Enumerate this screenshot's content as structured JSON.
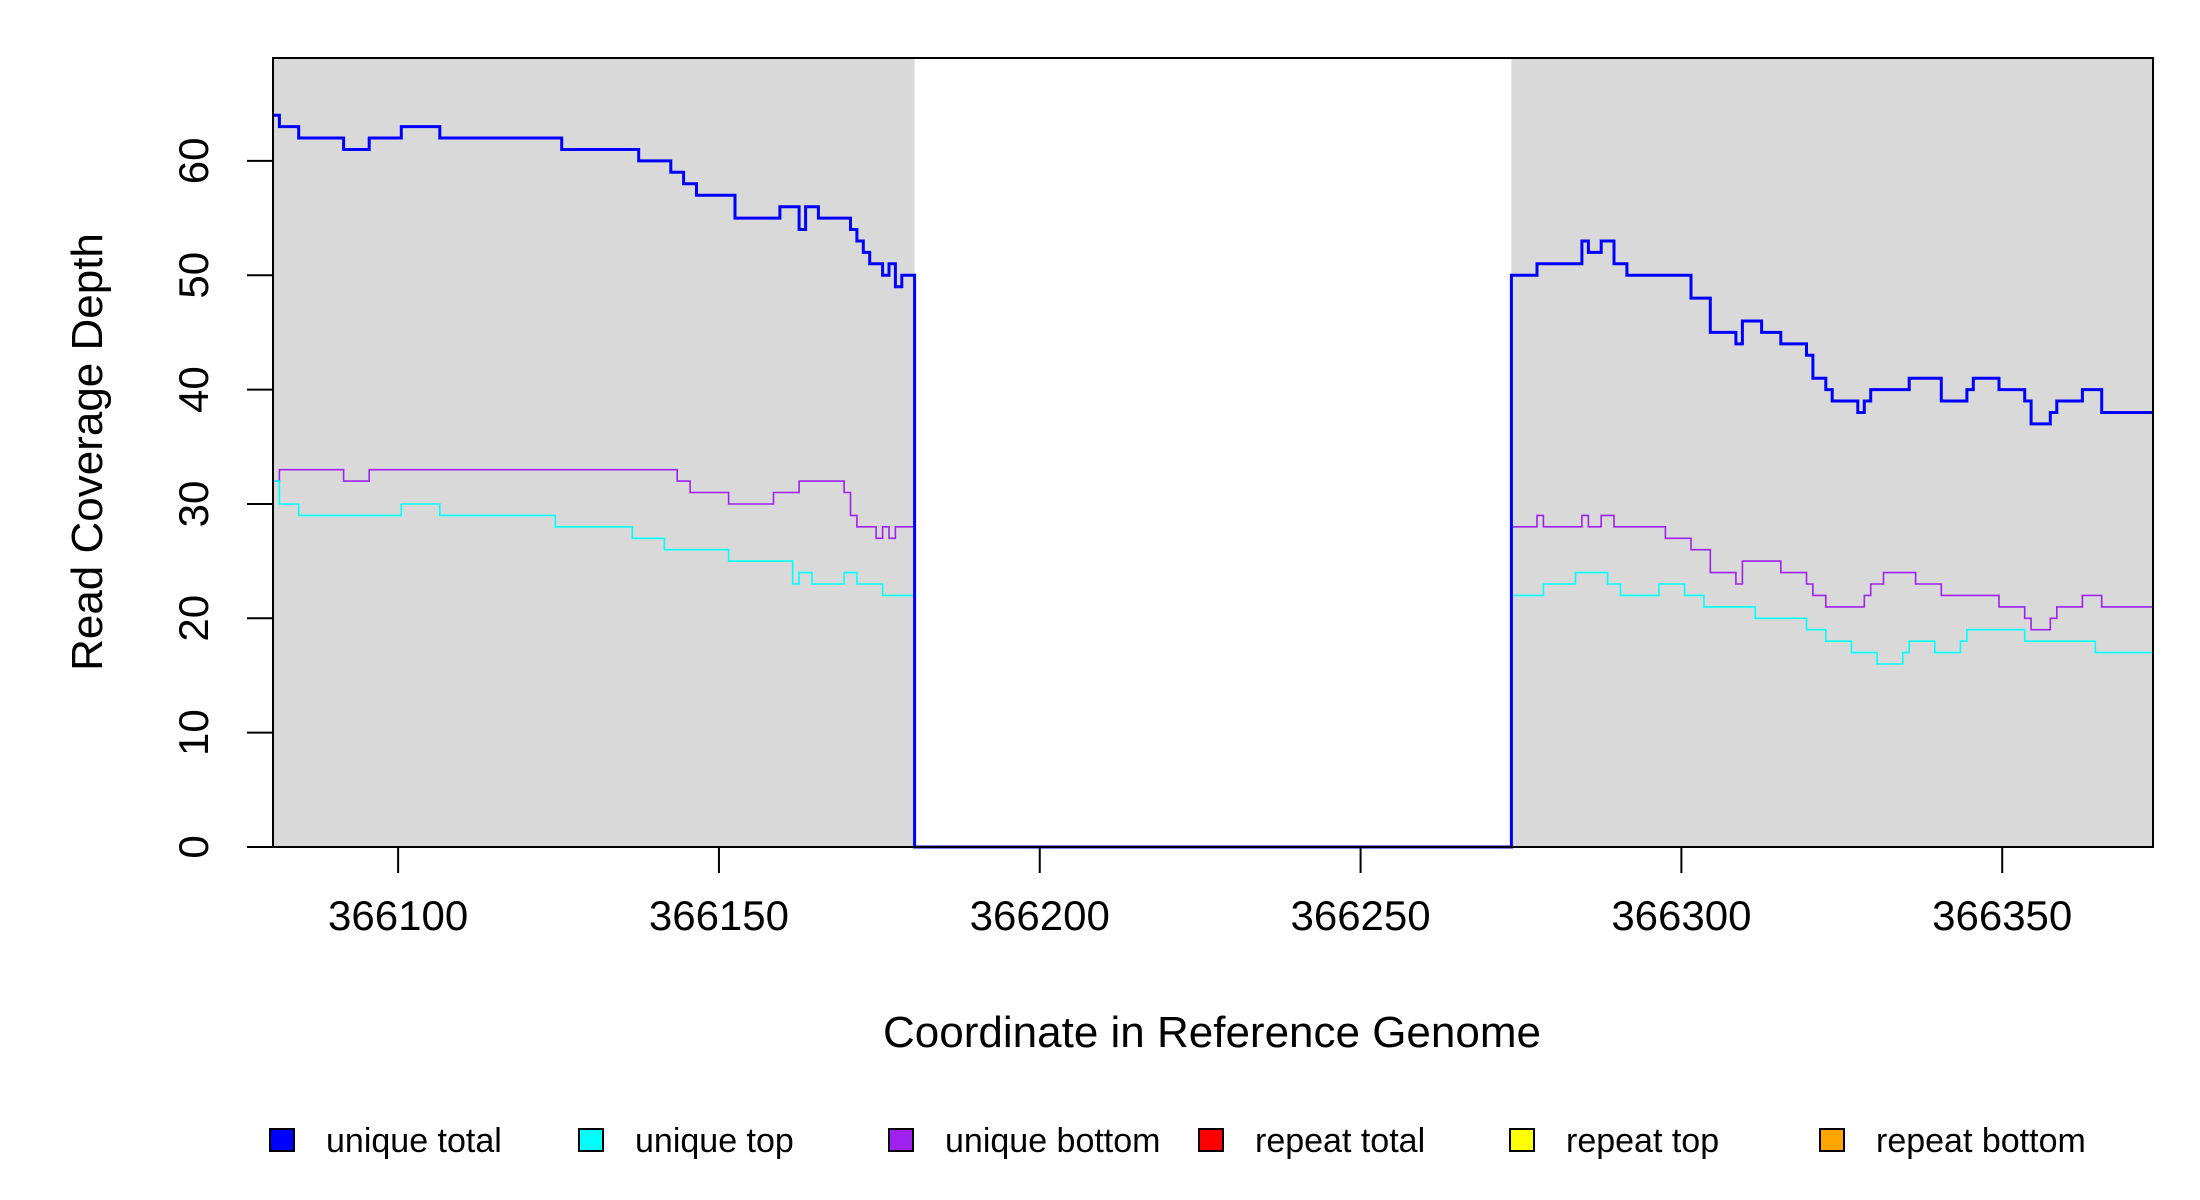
{
  "chart_data": {
    "type": "line",
    "line_style": "step",
    "xlabel": "Coordinate in Reference Genome",
    "ylabel": "Read Coverage Depth",
    "xlim": [
      366080.5,
      366373.5
    ],
    "ylim": [
      0,
      69
    ],
    "x_ticks": [
      366100,
      366150,
      366200,
      366250,
      366300,
      366350
    ],
    "y_ticks": [
      0,
      10,
      20,
      30,
      40,
      50,
      60
    ],
    "shaded_regions": [
      {
        "x0": 366080.5,
        "x1": 366180.5,
        "color": "#d9d9d9"
      },
      {
        "x0": 366273.5,
        "x1": 366373.5,
        "color": "#d9d9d9"
      }
    ],
    "series": [
      {
        "name": "unique total",
        "color": "#0000ff",
        "width": 3,
        "points": [
          [
            366080.5,
            64
          ],
          [
            366081.5,
            63
          ],
          [
            366084.5,
            62
          ],
          [
            366091.5,
            61
          ],
          [
            366095.5,
            62
          ],
          [
            366100.5,
            63
          ],
          [
            366106.5,
            62
          ],
          [
            366125.5,
            61
          ],
          [
            366137.5,
            60
          ],
          [
            366142.5,
            59
          ],
          [
            366144.5,
            58
          ],
          [
            366146.5,
            57
          ],
          [
            366152.5,
            55
          ],
          [
            366159.5,
            56
          ],
          [
            366162.5,
            54
          ],
          [
            366163.5,
            56
          ],
          [
            366165.5,
            55
          ],
          [
            366170.5,
            54
          ],
          [
            366171.5,
            53
          ],
          [
            366172.5,
            52
          ],
          [
            366173.5,
            51
          ],
          [
            366175.5,
            50
          ],
          [
            366176.5,
            51
          ],
          [
            366177.5,
            49
          ],
          [
            366178.5,
            50
          ],
          [
            366180.5,
            0
          ],
          [
            366273.5,
            50
          ],
          [
            366277.5,
            51
          ],
          [
            366284.5,
            53
          ],
          [
            366285.5,
            52
          ],
          [
            366287.5,
            53
          ],
          [
            366289.5,
            51
          ],
          [
            366291.5,
            50
          ],
          [
            366301.5,
            48
          ],
          [
            366304.5,
            45
          ],
          [
            366308.5,
            44
          ],
          [
            366309.5,
            46
          ],
          [
            366312.5,
            45
          ],
          [
            366315.5,
            44
          ],
          [
            366319.5,
            43
          ],
          [
            366320.5,
            41
          ],
          [
            366322.5,
            40
          ],
          [
            366323.5,
            39
          ],
          [
            366327.5,
            38
          ],
          [
            366328.5,
            39
          ],
          [
            366329.5,
            40
          ],
          [
            366335.5,
            41
          ],
          [
            366340.5,
            39
          ],
          [
            366344.5,
            40
          ],
          [
            366345.5,
            41
          ],
          [
            366349.5,
            40
          ],
          [
            366353.5,
            39
          ],
          [
            366354.5,
            37
          ],
          [
            366357.5,
            38
          ],
          [
            366358.5,
            39
          ],
          [
            366362.5,
            40
          ],
          [
            366365.5,
            38
          ],
          [
            366373.5,
            38
          ]
        ]
      },
      {
        "name": "unique top",
        "color": "#00ffff",
        "width": 1.6,
        "points": [
          [
            366080.5,
            32
          ],
          [
            366081.5,
            30
          ],
          [
            366084.5,
            29
          ],
          [
            366100.5,
            30
          ],
          [
            366106.5,
            29
          ],
          [
            366124.5,
            28
          ],
          [
            366136.5,
            27
          ],
          [
            366141.5,
            26
          ],
          [
            366151.5,
            25
          ],
          [
            366161.5,
            23
          ],
          [
            366162.5,
            24
          ],
          [
            366164.5,
            23
          ],
          [
            366169.5,
            24
          ],
          [
            366171.5,
            23
          ],
          [
            366175.5,
            22
          ],
          [
            366180.5,
            0
          ],
          [
            366273.5,
            22
          ],
          [
            366278.5,
            23
          ],
          [
            366283.5,
            24
          ],
          [
            366288.5,
            23
          ],
          [
            366290.5,
            22
          ],
          [
            366296.5,
            23
          ],
          [
            366300.5,
            22
          ],
          [
            366303.5,
            21
          ],
          [
            366311.5,
            20
          ],
          [
            366319.5,
            19
          ],
          [
            366322.5,
            18
          ],
          [
            366326.5,
            17
          ],
          [
            366330.5,
            16
          ],
          [
            366334.5,
            17
          ],
          [
            366335.5,
            18
          ],
          [
            366339.5,
            17
          ],
          [
            366343.5,
            18
          ],
          [
            366344.5,
            19
          ],
          [
            366353.5,
            18
          ],
          [
            366364.5,
            17
          ],
          [
            366373.5,
            17
          ]
        ]
      },
      {
        "name": "unique bottom",
        "color": "#a020f0",
        "width": 1.6,
        "points": [
          [
            366080.5,
            32
          ],
          [
            366081.5,
            33
          ],
          [
            366091.5,
            32
          ],
          [
            366095.5,
            33
          ],
          [
            366143.5,
            32
          ],
          [
            366145.5,
            31
          ],
          [
            366151.5,
            30
          ],
          [
            366158.5,
            31
          ],
          [
            366162.5,
            32
          ],
          [
            366169.5,
            31
          ],
          [
            366170.5,
            29
          ],
          [
            366171.5,
            28
          ],
          [
            366174.5,
            27
          ],
          [
            366175.5,
            28
          ],
          [
            366176.5,
            27
          ],
          [
            366177.5,
            28
          ],
          [
            366180.5,
            0
          ],
          [
            366273.5,
            28
          ],
          [
            366277.5,
            29
          ],
          [
            366278.5,
            28
          ],
          [
            366284.5,
            29
          ],
          [
            366285.5,
            28
          ],
          [
            366287.5,
            29
          ],
          [
            366289.5,
            28
          ],
          [
            366297.5,
            27
          ],
          [
            366301.5,
            26
          ],
          [
            366304.5,
            24
          ],
          [
            366308.5,
            23
          ],
          [
            366309.5,
            25
          ],
          [
            366315.5,
            24
          ],
          [
            366319.5,
            23
          ],
          [
            366320.5,
            22
          ],
          [
            366322.5,
            21
          ],
          [
            366328.5,
            22
          ],
          [
            366329.5,
            23
          ],
          [
            366331.5,
            24
          ],
          [
            366336.5,
            23
          ],
          [
            366340.5,
            22
          ],
          [
            366349.5,
            21
          ],
          [
            366353.5,
            20
          ],
          [
            366354.5,
            19
          ],
          [
            366357.5,
            20
          ],
          [
            366358.5,
            21
          ],
          [
            366362.5,
            22
          ],
          [
            366365.5,
            21
          ],
          [
            366373.5,
            21
          ]
        ]
      },
      {
        "name": "repeat total",
        "color": "#ff0000",
        "width": 1.6,
        "points": [
          [
            366080.5,
            0
          ],
          [
            366373.5,
            0
          ]
        ]
      },
      {
        "name": "repeat top",
        "color": "#ffff00",
        "width": 1.6,
        "points": [
          [
            366080.5,
            0
          ],
          [
            366373.5,
            0
          ]
        ]
      },
      {
        "name": "repeat bottom",
        "color": "#ffa500",
        "width": 1.6,
        "points": [
          [
            366080.5,
            0
          ],
          [
            366373.5,
            0
          ]
        ]
      }
    ],
    "legend": {
      "placement": "bottom",
      "entries": [
        {
          "label": "unique total",
          "color": "#0000ff"
        },
        {
          "label": "unique top",
          "color": "#00ffff"
        },
        {
          "label": "unique bottom",
          "color": "#a020f0"
        },
        {
          "label": "repeat total",
          "color": "#ff0000"
        },
        {
          "label": "repeat top",
          "color": "#ffff00"
        },
        {
          "label": "repeat bottom",
          "color": "#ffa500"
        }
      ]
    }
  }
}
